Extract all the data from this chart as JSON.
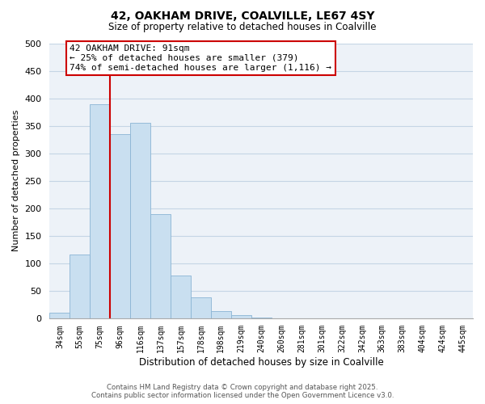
{
  "title": "42, OAKHAM DRIVE, COALVILLE, LE67 4SY",
  "subtitle": "Size of property relative to detached houses in Coalville",
  "xlabel": "Distribution of detached houses by size in Coalville",
  "ylabel": "Number of detached properties",
  "bin_labels": [
    "34sqm",
    "55sqm",
    "75sqm",
    "96sqm",
    "116sqm",
    "137sqm",
    "157sqm",
    "178sqm",
    "198sqm",
    "219sqm",
    "240sqm",
    "260sqm",
    "281sqm",
    "301sqm",
    "322sqm",
    "342sqm",
    "363sqm",
    "383sqm",
    "404sqm",
    "424sqm",
    "445sqm"
  ],
  "bar_heights": [
    10,
    115,
    390,
    335,
    355,
    190,
    78,
    37,
    12,
    5,
    1,
    0,
    0,
    0,
    0,
    0,
    0,
    0,
    0,
    0,
    0
  ],
  "bar_color": "#c9dff0",
  "bar_edge_color": "#8ab4d4",
  "vline_color": "#cc0000",
  "annotation_text": "42 OAKHAM DRIVE: 91sqm\n← 25% of detached houses are smaller (379)\n74% of semi-detached houses are larger (1,116) →",
  "annotation_box_color": "#ffffff",
  "annotation_box_edge": "#cc0000",
  "ylim": [
    0,
    500
  ],
  "yticks": [
    0,
    50,
    100,
    150,
    200,
    250,
    300,
    350,
    400,
    450,
    500
  ],
  "grid_color": "#c5d5e5",
  "background_color": "#edf2f8",
  "footer_line1": "Contains HM Land Registry data © Crown copyright and database right 2025.",
  "footer_line2": "Contains public sector information licensed under the Open Government Licence v3.0."
}
